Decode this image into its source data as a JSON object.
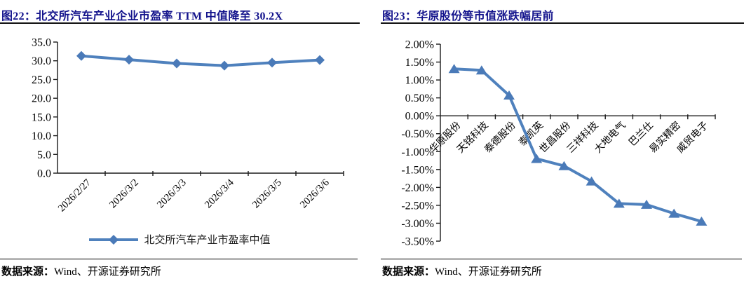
{
  "colors": {
    "title": "#13138c",
    "line": "#4f81bd",
    "marker": "#4a7ab8",
    "axis": "#1a1a1a",
    "text": "#000000"
  },
  "figures": [
    {
      "id": "fig22",
      "title": "图22：北交所汽车产业企业市盈率 TTM 中值降至 30.2X",
      "source_label": "数据来源：",
      "source_text": "Wind、开源证券研究所"
    },
    {
      "id": "fig23",
      "title": "图23：华原股份等市值涨跌幅居前",
      "source_label": "数据来源：",
      "source_text": "Wind、开源证券研究所"
    }
  ],
  "chart_data": [
    {
      "type": "line",
      "marker": "diamond",
      "title": "北交所汽车产业企业市盈率TTM中值降至30.2X",
      "categories": [
        "2026/2/27",
        "2026/3/2",
        "2026/3/3",
        "2026/3/4",
        "2026/3/5",
        "2026/3/6"
      ],
      "values": [
        31.3,
        30.3,
        29.3,
        28.7,
        29.5,
        30.2
      ],
      "ylim": [
        0,
        35
      ],
      "ytick_step": 5,
      "ytick_format": "fixed1",
      "xlabel": "",
      "ylabel": "",
      "grid": false,
      "legend": [
        "北交所汽车产业市盈率中值"
      ],
      "legend_position": "bottom"
    },
    {
      "type": "line",
      "marker": "triangle",
      "title": "华原股份等市值涨跌幅居前",
      "categories": [
        "华原股份",
        "天铭科技",
        "泰德股份",
        "泰凯英",
        "世昌股份",
        "三祥科技",
        "大地电气",
        "巴兰仕",
        "易实精密",
        "威贸电子"
      ],
      "values": [
        1.31,
        1.27,
        0.57,
        -1.2,
        -1.4,
        -1.83,
        -2.45,
        -2.48,
        -2.73,
        -2.95
      ],
      "ylim": [
        -3.5,
        2.0
      ],
      "ytick_step": 0.5,
      "ytick_format": "percent2",
      "xlabel": "",
      "ylabel": "",
      "grid": false,
      "legend": [],
      "legend_position": "none"
    }
  ]
}
